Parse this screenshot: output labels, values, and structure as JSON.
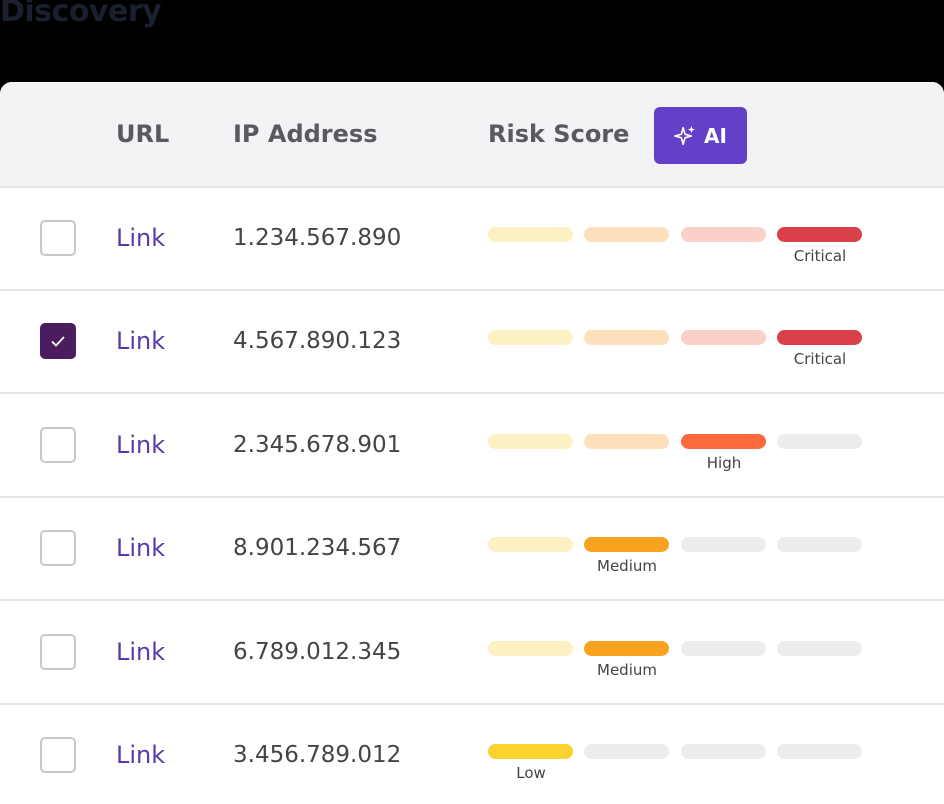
{
  "header": {
    "title": "Discovery"
  },
  "table": {
    "columns": [
      "URL",
      "IP Address",
      "Risk Score"
    ],
    "ai_button": "AI",
    "segment_pale_colors": [
      "#fdf1c4",
      "#fde0bb",
      "#fbd0c8",
      "#ececec"
    ],
    "segment_active_colors": [
      "#fcd22e",
      "#f9a21f",
      "#fb6a3c",
      "#d9404a"
    ],
    "segment_empty_color": "#ececec",
    "rows": [
      {
        "checked": false,
        "url": "Link",
        "ip": "1.234.567.890",
        "risk": "Critical",
        "level": 4
      },
      {
        "checked": true,
        "url": "Link",
        "ip": "4.567.890.123",
        "risk": "Critical",
        "level": 4
      },
      {
        "checked": false,
        "url": "Link",
        "ip": "2.345.678.901",
        "risk": "High",
        "level": 3
      },
      {
        "checked": false,
        "url": "Link",
        "ip": "8.901.234.567",
        "risk": "Medium",
        "level": 2
      },
      {
        "checked": false,
        "url": "Link",
        "ip": "6.789.012.345",
        "risk": "Medium",
        "level": 2
      },
      {
        "checked": false,
        "url": "Link",
        "ip": "3.456.789.012",
        "risk": "Low",
        "level": 1
      }
    ]
  }
}
